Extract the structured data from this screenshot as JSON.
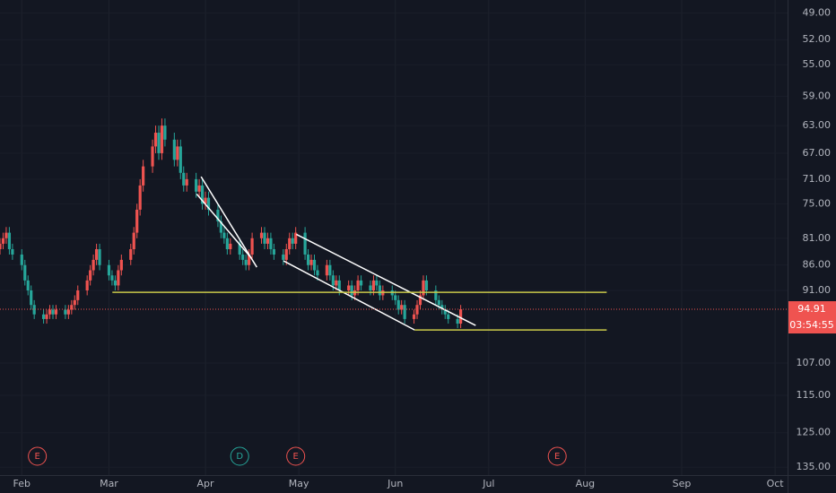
{
  "chart_data": {
    "type": "candlestick",
    "log": true,
    "inverted": true,
    "grid": true,
    "up_color": "#26a69a",
    "down_color": "#ef5350",
    "xlim": [
      24,
      277
    ],
    "ylim": [
      47.6,
      137.4
    ],
    "xticks": [
      {
        "value": 31,
        "label": "Feb"
      },
      {
        "value": 59,
        "label": "Mar"
      },
      {
        "value": 90,
        "label": "Apr"
      },
      {
        "value": 120,
        "label": "May"
      },
      {
        "value": 151,
        "label": "Jun"
      },
      {
        "value": 181,
        "label": "Jul"
      },
      {
        "value": 212,
        "label": "Aug"
      },
      {
        "value": 243,
        "label": "Sep"
      },
      {
        "value": 273,
        "label": "Oct"
      }
    ],
    "yticks": [
      {
        "value": 49,
        "label": "49.00"
      },
      {
        "value": 52,
        "label": "52.00"
      },
      {
        "value": 55,
        "label": "55.00"
      },
      {
        "value": 59,
        "label": "59.00"
      },
      {
        "value": 63,
        "label": "63.00"
      },
      {
        "value": 67,
        "label": "67.00"
      },
      {
        "value": 71,
        "label": "71.00"
      },
      {
        "value": 75,
        "label": "75.00"
      },
      {
        "value": 81,
        "label": "81.00"
      },
      {
        "value": 86,
        "label": "86.00"
      },
      {
        "value": 91,
        "label": "91.00"
      },
      {
        "value": 107,
        "label": "107.00"
      },
      {
        "value": 115,
        "label": "115.00"
      },
      {
        "value": 125,
        "label": "125.00"
      },
      {
        "value": 135,
        "label": "135.00"
      }
    ],
    "x": [
      24,
      25,
      26,
      27,
      28,
      31,
      32,
      33,
      34,
      35,
      38,
      39,
      40,
      41,
      42,
      45,
      46,
      47,
      48,
      49,
      52,
      53,
      54,
      55,
      56,
      59,
      60,
      61,
      62,
      63,
      66,
      67,
      68,
      69,
      70,
      73,
      74,
      75,
      76,
      77,
      80,
      81,
      82,
      83,
      84,
      87,
      88,
      89,
      90,
      91,
      94,
      95,
      96,
      97,
      98,
      101,
      102,
      103,
      104,
      105,
      108,
      109,
      110,
      111,
      112,
      115,
      116,
      117,
      118,
      119,
      122,
      123,
      124,
      125,
      126,
      129,
      130,
      131,
      132,
      133,
      136,
      137,
      138,
      139,
      140,
      143,
      144,
      145,
      146,
      147,
      150,
      151,
      152,
      153,
      154,
      157,
      158,
      159,
      160,
      161,
      164,
      165,
      166,
      167,
      168,
      171,
      172
    ],
    "open": [
      83,
      82,
      81,
      80,
      83,
      84,
      86,
      89,
      91,
      94,
      96,
      97,
      96,
      95,
      96,
      95,
      96,
      95,
      94,
      93,
      91,
      89,
      87,
      85,
      83,
      86,
      88,
      89,
      90,
      87,
      85,
      83,
      80,
      76,
      72,
      69,
      66,
      64,
      67,
      63,
      65,
      68,
      66,
      70,
      72,
      71,
      73,
      72,
      75,
      74,
      76,
      78,
      80,
      81,
      83,
      82,
      84,
      85,
      86,
      84,
      81,
      80,
      82,
      81,
      83,
      84,
      85,
      83,
      81,
      82,
      80,
      84,
      86,
      85,
      87,
      88,
      86,
      88,
      90,
      89,
      91,
      90,
      92,
      91,
      89,
      90,
      91,
      89,
      90,
      92,
      91,
      92,
      93,
      95,
      94,
      97,
      96,
      94,
      92,
      89,
      91,
      93,
      94,
      95,
      96,
      97,
      98
    ],
    "high": [
      84,
      83,
      82,
      84,
      85,
      87,
      90,
      92,
      95,
      97,
      98,
      98,
      97,
      97,
      97,
      97,
      97,
      96,
      95,
      94,
      92,
      90,
      88,
      86,
      87,
      89,
      90,
      91,
      91,
      88,
      86,
      84,
      81,
      77,
      73,
      70,
      67,
      68,
      68,
      66,
      69,
      69,
      71,
      73,
      73,
      74,
      74,
      76,
      76,
      77,
      79,
      81,
      82,
      84,
      84,
      85,
      86,
      87,
      87,
      85,
      82,
      83,
      83,
      84,
      85,
      86,
      86,
      84,
      83,
      83,
      85,
      87,
      87,
      88,
      89,
      89,
      89,
      91,
      91,
      92,
      92,
      93,
      93,
      92,
      91,
      92,
      92,
      91,
      93,
      93,
      93,
      94,
      96,
      96,
      98,
      98,
      97,
      95,
      93,
      92,
      94,
      95,
      96,
      97,
      98,
      99,
      99
    ],
    "low": [
      81,
      80,
      79,
      79,
      82,
      83,
      85,
      88,
      90,
      93,
      95,
      95,
      94,
      94,
      94,
      94,
      94,
      93,
      92,
      90,
      88,
      86,
      84,
      82,
      82,
      85,
      87,
      88,
      86,
      84,
      82,
      79,
      75,
      71,
      68,
      65,
      63,
      63,
      62,
      62,
      64,
      65,
      65,
      69,
      70,
      70,
      71,
      71,
      73,
      73,
      75,
      77,
      79,
      80,
      81,
      81,
      83,
      84,
      83,
      80,
      79,
      79,
      80,
      80,
      82,
      83,
      82,
      80,
      80,
      79,
      79,
      83,
      84,
      84,
      86,
      85,
      85,
      87,
      88,
      88,
      89,
      89,
      90,
      88,
      88,
      89,
      88,
      88,
      89,
      90,
      90,
      91,
      92,
      93,
      93,
      95,
      93,
      91,
      88,
      88,
      90,
      92,
      93,
      94,
      95,
      96,
      94
    ],
    "close": [
      82,
      81,
      80,
      83,
      84,
      86,
      89,
      91,
      94,
      96,
      97,
      96,
      95,
      96,
      95,
      96,
      95,
      94,
      93,
      91,
      89,
      87,
      85,
      83,
      86,
      88,
      89,
      90,
      87,
      85,
      83,
      80,
      76,
      72,
      69,
      66,
      64,
      67,
      63,
      65,
      68,
      66,
      70,
      72,
      71,
      73,
      72,
      75,
      74,
      76,
      78,
      80,
      81,
      83,
      82,
      84,
      85,
      86,
      84,
      81,
      80,
      82,
      81,
      83,
      84,
      85,
      83,
      81,
      82,
      80,
      84,
      86,
      85,
      87,
      88,
      86,
      88,
      90,
      89,
      91,
      90,
      92,
      91,
      89,
      90,
      91,
      89,
      90,
      92,
      91,
      92,
      93,
      95,
      94,
      97,
      96,
      94,
      92,
      89,
      91,
      93,
      94,
      95,
      96,
      97,
      98,
      94.91
    ],
    "countdown": "03:54:55",
    "price_line_color": "#ef5350",
    "drawings": [
      {
        "color": "#ffffff",
        "x": [
          88.6,
          106.5
        ],
        "y": [
          70.6,
          86.4
        ]
      },
      {
        "color": "#ffffff",
        "x": [
          87.2,
          104.8
        ],
        "y": [
          73.4,
          84.7
        ]
      },
      {
        "color": "#ffffff",
        "x": [
          119.2,
          176.8
        ],
        "y": [
          80.3,
          98.4
        ]
      },
      {
        "color": "#ffffff",
        "x": [
          115.1,
          157.2
        ],
        "y": [
          85.2,
          99.4
        ]
      },
      {
        "color": "#c9c94a",
        "x": [
          60.1,
          218.9
        ],
        "y": [
          91.4,
          91.4
        ]
      },
      {
        "color": "#c9c94a",
        "x": [
          157.2,
          218.9
        ],
        "y": [
          99.4,
          99.4
        ]
      }
    ],
    "events": [
      {
        "label": "E",
        "x": 36,
        "color": "#ef5350"
      },
      {
        "label": "D",
        "x": 101,
        "color": "#26a69a"
      },
      {
        "label": "E",
        "x": 119,
        "color": "#ef5350"
      },
      {
        "label": "E",
        "x": 203,
        "color": "#ef5350"
      }
    ]
  }
}
